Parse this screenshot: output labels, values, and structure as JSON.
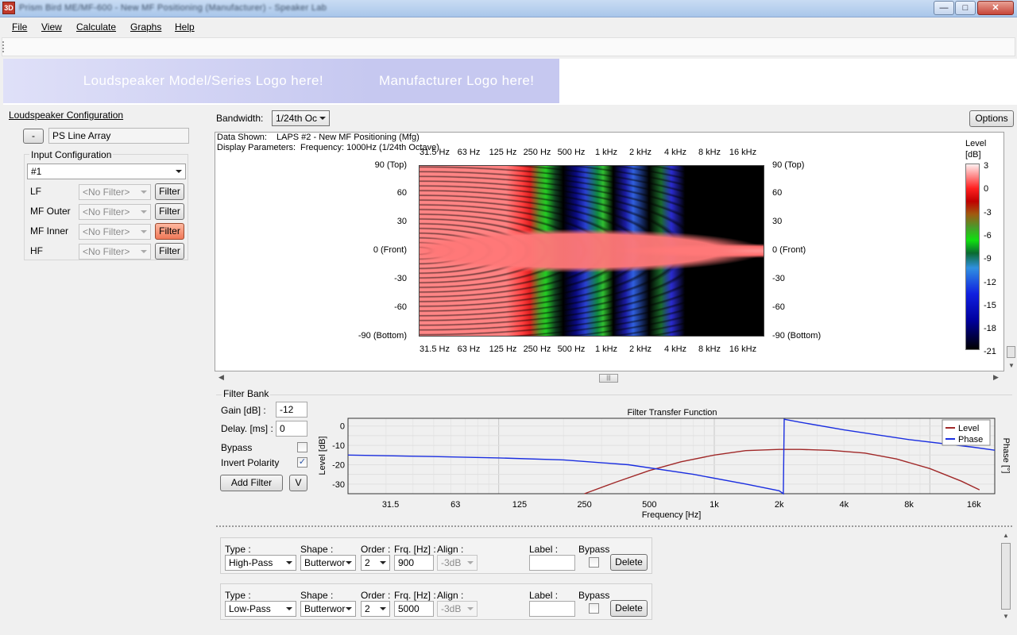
{
  "window": {
    "title": "Prism Bird ME/MF-600 - New MF Positioning (Manufacturer) - Speaker Lab",
    "icon_text": "3D"
  },
  "menu": {
    "items": [
      "File",
      "View",
      "Calculate",
      "Graphs",
      "Help"
    ]
  },
  "logos": {
    "left": "Loudspeaker Model/Series Logo here!",
    "right": "Manufacturer Logo here!"
  },
  "config": {
    "title": "Loudspeaker Configuration",
    "collapse_label": "-",
    "array_name": "PS Line Array",
    "input_config_label": "Input Configuration",
    "input_config_value": "#1",
    "bands": [
      {
        "label": "LF",
        "filter": "<No Filter>",
        "button": "Filter",
        "highlight": false
      },
      {
        "label": "MF Outer",
        "filter": "<No Filter>",
        "button": "Filter",
        "highlight": false
      },
      {
        "label": "MF Inner",
        "filter": "<No Filter>",
        "button": "Filter",
        "highlight": true
      },
      {
        "label": "HF",
        "filter": "<No Filter>",
        "button": "Filter",
        "highlight": false
      }
    ]
  },
  "bandwidth": {
    "label": "Bandwidth:",
    "value": "1/24th Oc",
    "options_label": "Options"
  },
  "heatmap": {
    "data_shown_label": "Data Shown:",
    "data_shown_value": "LAPS #2 - New MF Positioning (Mfg)",
    "display_params_label": "Display Parameters:",
    "display_params_value": "Frequency: 1000Hz (1/24th Octave)",
    "x_ticks": [
      "31.5 Hz",
      "63 Hz",
      "125 Hz",
      "250 Hz",
      "500 Hz",
      "1 kHz",
      "2 kHz",
      "4 kHz",
      "8 kHz",
      "16 kHz"
    ],
    "y_ticks": [
      "90 (Top)",
      "60",
      "30",
      "0 (Front)",
      "-30",
      "-60",
      "-90 (Bottom)"
    ],
    "colorbar_title": "Level",
    "colorbar_unit": "[dB]",
    "colorbar_ticks": [
      "3",
      "0",
      "-3",
      "-6",
      "-9",
      "-12",
      "-15",
      "-18",
      "-21"
    ]
  },
  "filter_bank": {
    "title": "Filter Bank",
    "gain_label": "Gain [dB] :",
    "gain_value": "-12",
    "delay_label": "Delay. [ms] :",
    "delay_value": "0",
    "bypass_label": "Bypass",
    "bypass_checked": false,
    "invert_label": "Invert Polarity",
    "invert_checked": true,
    "add_filter_label": "Add Filter",
    "v_label": "V",
    "rows": [
      {
        "type_label": "Type :",
        "type": "High-Pass",
        "shape_label": "Shape :",
        "shape": "Butterwor",
        "order_label": "Order :",
        "order": "2",
        "frq_label": "Frq. [Hz] :",
        "frq": "900",
        "align_label": "Align :",
        "align": "-3dB",
        "label_label": "Label :",
        "label": "",
        "bypass_label": "Bypass",
        "delete_label": "Delete"
      },
      {
        "type_label": "Type :",
        "type": "Low-Pass",
        "shape_label": "Shape :",
        "shape": "Butterwor",
        "order_label": "Order :",
        "order": "2",
        "frq_label": "Frq. [Hz] :",
        "frq": "5000",
        "align_label": "Align :",
        "align": "-3dB",
        "label_label": "Label :",
        "label": "",
        "bypass_label": "Bypass",
        "delete_label": "Delete"
      }
    ]
  },
  "chart_data": {
    "type": "line",
    "title": "Filter Transfer Function",
    "xlabel": "Frequency [Hz]",
    "ylabel": "Level [dB]",
    "y2label": "Phase [°]",
    "x_scale": "log",
    "xlim": [
      20,
      20000
    ],
    "ylim": [
      -35,
      4
    ],
    "x_ticks": [
      31.5,
      63,
      125,
      250,
      500,
      1000,
      2000,
      4000,
      8000,
      16000
    ],
    "x_tick_labels": [
      "31.5",
      "63",
      "125",
      "250",
      "500",
      "1k",
      "2k",
      "4k",
      "8k",
      "16k"
    ],
    "y_ticks": [
      0,
      -10,
      -20,
      -30
    ],
    "grid": true,
    "legend": "top-right",
    "colors": {
      "Level": "#a02828",
      "Phase": "#1a2ee0"
    },
    "series": [
      {
        "name": "Level",
        "axis": "left",
        "x": [
          250,
          350,
          500,
          700,
          1000,
          1400,
          2000,
          2500,
          3500,
          5000,
          7000,
          10000,
          14000,
          17000
        ],
        "y": [
          -35,
          -29,
          -23,
          -18.5,
          -15,
          -12.7,
          -12.1,
          -12.1,
          -12.6,
          -14,
          -17,
          -22,
          -28.5,
          -33
        ]
      },
      {
        "name": "Phase",
        "axis": "right",
        "y_plot_units": true,
        "x": [
          20,
          50,
          100,
          200,
          400,
          800,
          1400,
          2000,
          2090,
          2110,
          2500,
          4000,
          8000,
          16000,
          20000
        ],
        "y": [
          -15,
          -15.8,
          -16.5,
          -17.5,
          -20,
          -25,
          -30,
          -33.5,
          -35,
          3.5,
          2,
          -2,
          -7,
          -11,
          -12.5
        ]
      }
    ]
  }
}
